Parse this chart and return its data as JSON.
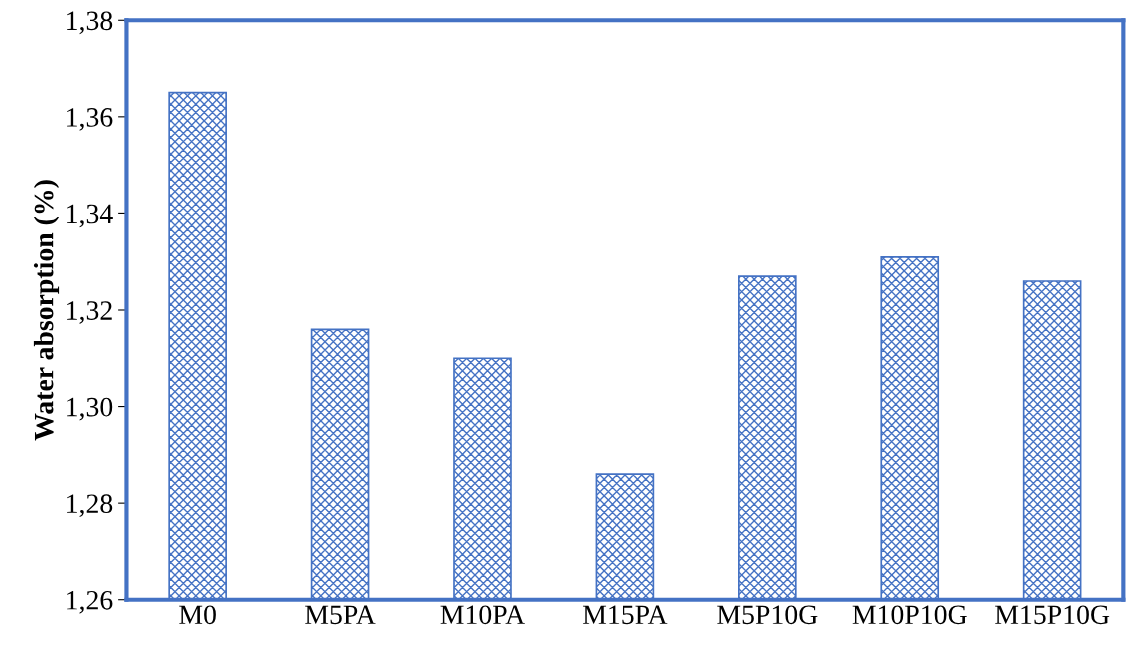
{
  "chart_data": {
    "type": "bar",
    "ylabel": "Water absorption (%)",
    "categories": [
      "M0",
      "M5PA",
      "M10PA",
      "M15PA",
      "M5P10G",
      "M10P10G",
      "M15P10G"
    ],
    "values": [
      1.365,
      1.316,
      1.31,
      1.286,
      1.327,
      1.331,
      1.326
    ],
    "color": "#4472c4",
    "ylim": [
      1.26,
      1.38
    ],
    "yticks": [
      {
        "value": 1.26,
        "label": "1,26"
      },
      {
        "value": 1.28,
        "label": "1,28"
      },
      {
        "value": 1.3,
        "label": "1,30"
      },
      {
        "value": 1.32,
        "label": "1,32"
      },
      {
        "value": 1.34,
        "label": "1,34"
      },
      {
        "value": 1.36,
        "label": "1,36"
      },
      {
        "value": 1.38,
        "label": "1,38"
      }
    ],
    "grid": false,
    "legend": false
  }
}
